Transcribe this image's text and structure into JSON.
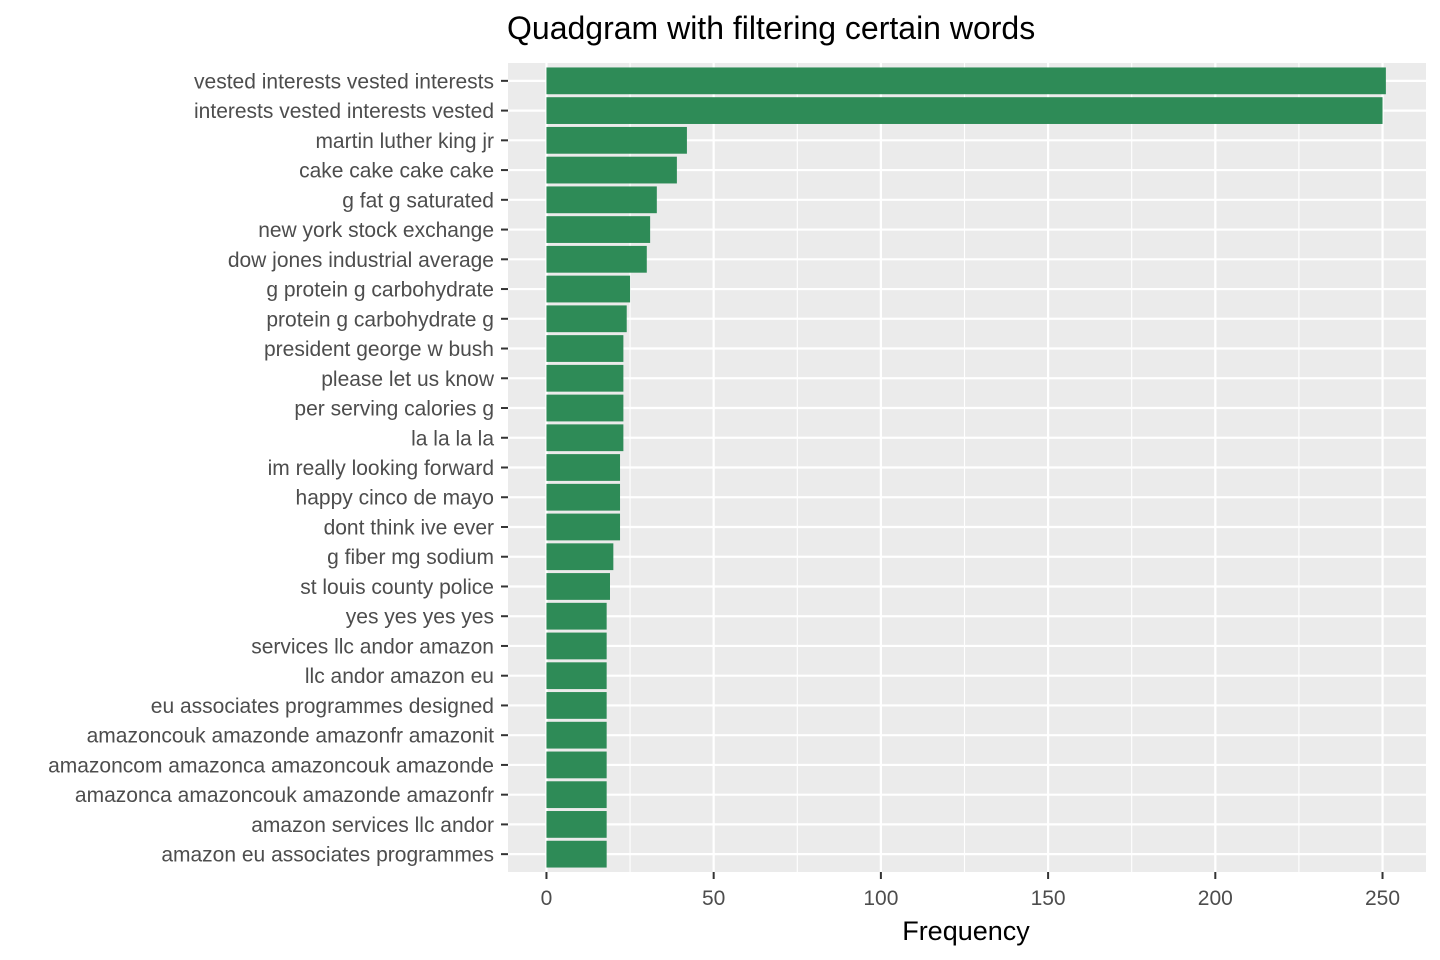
{
  "chart_data": {
    "type": "bar",
    "orientation": "horizontal",
    "title": "Quadgram with filtering certain words",
    "xlabel": "Frequency",
    "ylabel": "",
    "xlim": [
      -11.5,
      263
    ],
    "x_ticks": [
      0,
      50,
      100,
      150,
      200,
      250
    ],
    "grid": true,
    "legend": "none",
    "bar_color": "#2e8b57",
    "panel_background": "#ebebeb",
    "categories": [
      "vested interests vested interests",
      "interests vested interests vested",
      "martin luther king jr",
      "cake cake cake cake",
      "g fat g saturated",
      "new york stock exchange",
      "dow jones industrial average",
      "g protein g carbohydrate",
      "protein g carbohydrate g",
      "president george w bush",
      "please let us know",
      "per serving calories g",
      "la la la la",
      "im really looking forward",
      "happy cinco de mayo",
      "dont think ive ever",
      "g fiber mg sodium",
      "st louis county police",
      "yes yes yes yes",
      "services llc andor amazon",
      "llc andor amazon eu",
      "eu associates programmes designed",
      "amazoncouk amazonde amazonfr amazonit",
      "amazoncom amazonca amazoncouk amazonde",
      "amazonca amazoncouk amazonde amazonfr",
      "amazon services llc andor",
      "amazon eu associates programmes"
    ],
    "values": [
      251,
      250,
      42,
      39,
      33,
      31,
      30,
      25,
      24,
      23,
      23,
      23,
      23,
      22,
      22,
      22,
      20,
      19,
      18,
      18,
      18,
      18,
      18,
      18,
      18,
      18,
      18
    ]
  }
}
